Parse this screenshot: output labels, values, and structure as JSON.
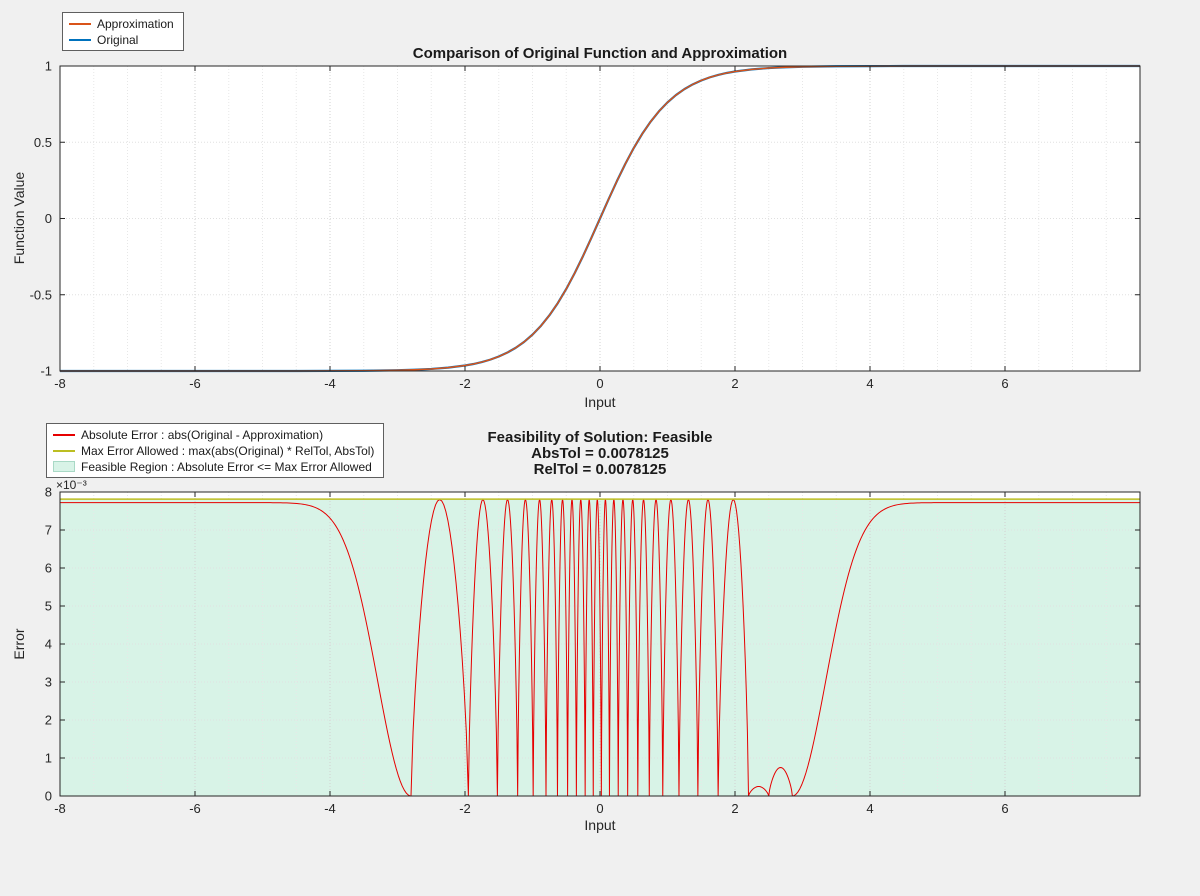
{
  "figure": {
    "background": "#F0F0F0",
    "axes_background": "#FFFFFF",
    "axis_color": "#262626",
    "grid_color": "#D2D2D2"
  },
  "chart_data": [
    {
      "type": "line",
      "title": "Comparison of Original Function and Approximation",
      "xlabel": "Input",
      "ylabel": "Function Value",
      "xlim": [
        -8,
        8
      ],
      "ylim": [
        -1,
        1
      ],
      "xticks": [
        -8,
        -6,
        -4,
        -2,
        0,
        2,
        4,
        6
      ],
      "yticks": [
        -1,
        -0.5,
        0,
        0.5,
        1
      ],
      "grid": "minor-dotted",
      "legend_position": "top-left-outside",
      "x": [
        -8,
        -7,
        -6,
        -5,
        -4.5,
        -4,
        -3.5,
        -3,
        -2.75,
        -2.5,
        -2.25,
        -2,
        -1.875,
        -1.75,
        -1.625,
        -1.5,
        -1.375,
        -1.25,
        -1.125,
        -1,
        -0.875,
        -0.75,
        -0.625,
        -0.5,
        -0.375,
        -0.25,
        -0.125,
        0,
        0.125,
        0.25,
        0.375,
        0.5,
        0.625,
        0.75,
        0.875,
        1,
        1.125,
        1.25,
        1.375,
        1.5,
        1.625,
        1.75,
        1.875,
        2,
        2.25,
        2.5,
        2.75,
        3,
        3.5,
        4,
        4.5,
        5,
        6,
        7,
        8
      ],
      "series": [
        {
          "key": "approximation",
          "name": "Approximation",
          "color": "#D95319",
          "values": [
            -1,
            -1,
            -1,
            -0.9999,
            -0.9998,
            -0.9993,
            -0.9982,
            -0.9951,
            -0.9919,
            -0.9866,
            -0.978,
            -0.964,
            -0.9542,
            -0.9414,
            -0.9254,
            -0.9051,
            -0.8797,
            -0.8483,
            -0.8093,
            -0.7616,
            -0.7039,
            -0.6351,
            -0.5546,
            -0.4621,
            -0.3584,
            -0.2449,
            -0.1244,
            0,
            0.1244,
            0.2449,
            0.3584,
            0.4621,
            0.5546,
            0.6351,
            0.7039,
            0.7616,
            0.8093,
            0.8483,
            0.8797,
            0.9051,
            0.9254,
            0.9414,
            0.9542,
            0.964,
            0.978,
            0.9866,
            0.9919,
            0.9951,
            0.9982,
            0.9993,
            0.9998,
            0.9999,
            1,
            1,
            1
          ]
        },
        {
          "key": "original",
          "name": "Original",
          "color": "#0072BD",
          "values": [
            -1,
            -1,
            -1,
            -0.9999,
            -0.9998,
            -0.9993,
            -0.9982,
            -0.9951,
            -0.9919,
            -0.9866,
            -0.978,
            -0.964,
            -0.9542,
            -0.9414,
            -0.9254,
            -0.9051,
            -0.8797,
            -0.8483,
            -0.8093,
            -0.7616,
            -0.7039,
            -0.6351,
            -0.5546,
            -0.4621,
            -0.3584,
            -0.2449,
            -0.1244,
            0,
            0.1244,
            0.2449,
            0.3584,
            0.4621,
            0.5546,
            0.6351,
            0.7039,
            0.7616,
            0.8093,
            0.8483,
            0.8797,
            0.9051,
            0.9254,
            0.9414,
            0.9542,
            0.964,
            0.978,
            0.9866,
            0.9919,
            0.9951,
            0.9982,
            0.9993,
            0.9998,
            0.9999,
            1,
            1,
            1
          ]
        }
      ]
    },
    {
      "type": "line",
      "title_lines": [
        "Feasibility of Solution: Feasible",
        "AbsTol = 0.0078125",
        "RelTol = 0.0078125"
      ],
      "feasibility": "Feasible",
      "abs_tol": "0.0078125",
      "rel_tol": "0.0078125",
      "xlabel": "Input",
      "ylabel": "Error",
      "y_scale_label": "×10⁻³",
      "y_units": "1e-3",
      "xlim": [
        -8,
        8
      ],
      "ylim": [
        0,
        8
      ],
      "xticks": [
        -8,
        -6,
        -4,
        -2,
        0,
        2,
        4,
        6
      ],
      "yticks": [
        0,
        1,
        2,
        3,
        4,
        5,
        6,
        7,
        8
      ],
      "grid": "minor-dotted",
      "legend_position": "top-left-outside",
      "series": [
        {
          "key": "absolute-error",
          "name": "Absolute Error : abs(Original - Approximation)",
          "color": "#E60000",
          "type": "error_curve",
          "plateau": 7.72,
          "tail_width": 0.7,
          "lobe_power": 0.7,
          "zeros": [
            -2.8,
            -1.95,
            -1.52,
            -1.22,
            -0.99,
            -0.8,
            -0.63,
            -0.48,
            -0.35,
            -0.22,
            -0.1,
            0.02,
            0.14,
            0.27,
            0.41,
            0.56,
            0.73,
            0.93,
            1.17,
            1.45,
            1.75,
            2.2,
            2.5,
            2.85
          ],
          "lobe_peaks": [
            7.8,
            7.8,
            7.8,
            7.8,
            7.8,
            7.8,
            7.8,
            7.8,
            7.8,
            7.8,
            7.8,
            7.8,
            7.8,
            7.8,
            7.8,
            7.8,
            7.8,
            7.8,
            7.8,
            7.8,
            7.8,
            0.25,
            0.75
          ]
        },
        {
          "key": "max-error-allowed",
          "name": "Max Error Allowed : max(abs(Original) * RelTol, AbsTol)",
          "color": "#BCBE22",
          "type": "hline",
          "y": 7.8125
        },
        {
          "key": "feasible-region",
          "name": "Feasible Region : Absolute Error <= Max Error Allowed",
          "color": "#D8F3E7",
          "type": "region",
          "y_top": 7.8125
        }
      ]
    }
  ]
}
